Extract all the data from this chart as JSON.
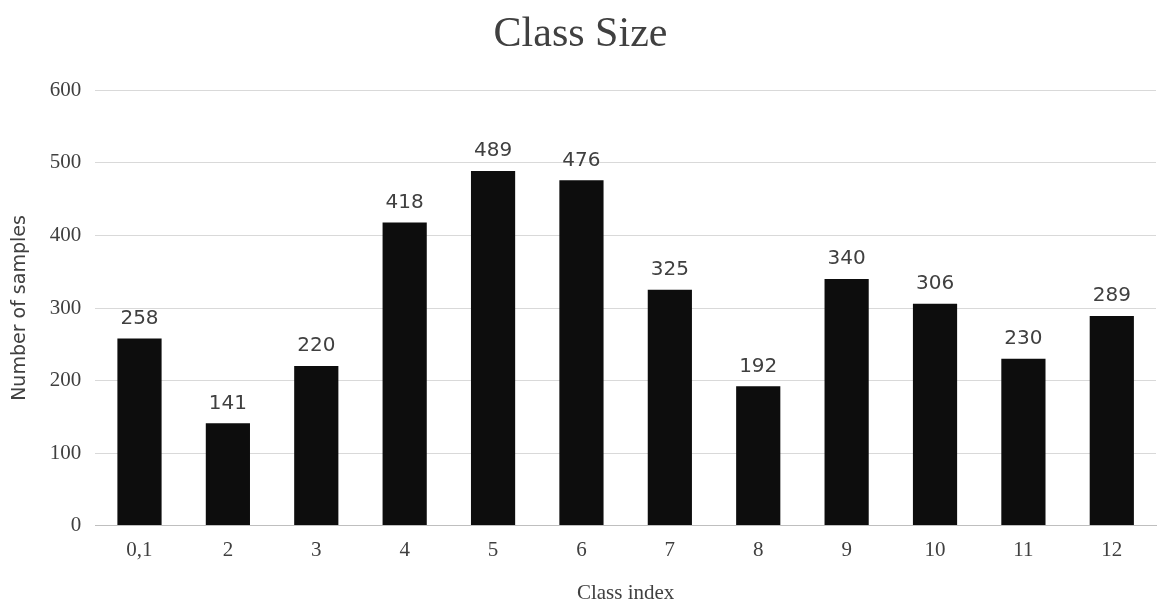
{
  "chart_data": {
    "type": "bar",
    "title": "Class Size",
    "xlabel": "Class index",
    "ylabel": "Number of samples",
    "categories": [
      "0,1",
      "2",
      "3",
      "4",
      "5",
      "6",
      "7",
      "8",
      "9",
      "10",
      "11",
      "12"
    ],
    "values": [
      258,
      141,
      220,
      418,
      489,
      476,
      325,
      192,
      340,
      306,
      230,
      289
    ],
    "color": "#0d0d0d",
    "ylim": [
      0,
      600
    ],
    "yticks": [
      0,
      100,
      200,
      300,
      400,
      500,
      600
    ],
    "grid": "y",
    "data_labels": true,
    "legend": false
  }
}
